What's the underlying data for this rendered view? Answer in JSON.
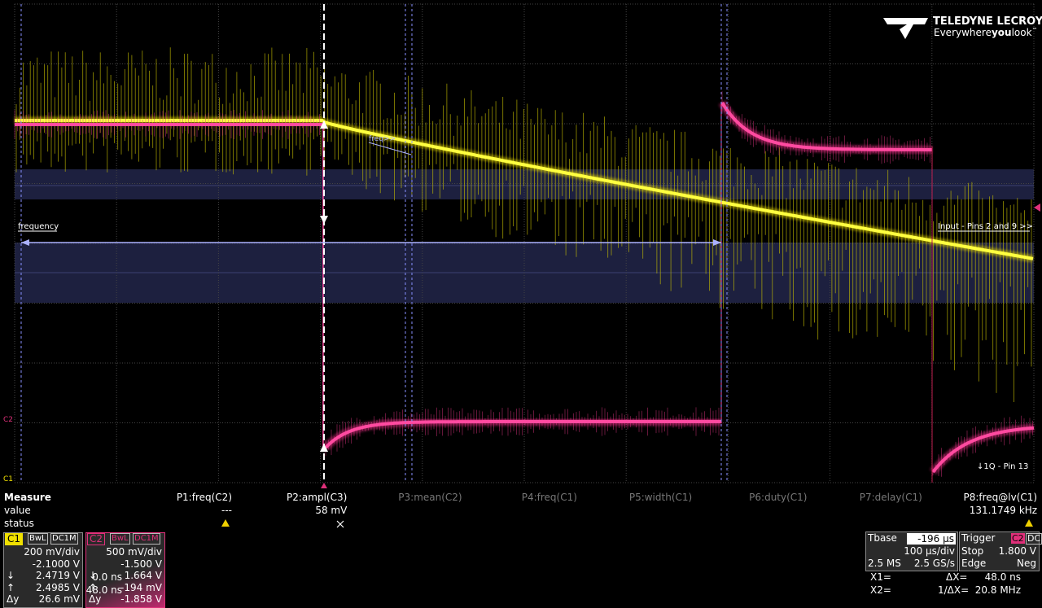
{
  "logo": {
    "brand": "TELEDYNE LECROY",
    "tagline": [
      "Everywhere",
      "you",
      "look"
    ],
    "mark": "™"
  },
  "annotations": {
    "frequency": "frequency",
    "freq": "freq>>",
    "input": "Input - Pins 2 and 9 >>",
    "output": "↓1Q - Pin 13",
    "c2_marker": "C2",
    "c1_marker": "C1"
  },
  "measure": {
    "title": "Measure",
    "row_labels": [
      "value",
      "status"
    ],
    "params": [
      {
        "name": "P1:freq(C2)",
        "value": "---"
      },
      {
        "name": "P2:ampl(C3)",
        "value": "58 mV"
      },
      {
        "name": "P3:mean(C2)"
      },
      {
        "name": "P4:freq(C1)"
      },
      {
        "name": "P5:width(C1)"
      },
      {
        "name": "P6:duty(C1)"
      },
      {
        "name": "P7:delay(C1)"
      },
      {
        "name": "P8:freq@lv(C1)",
        "value": "131.1749 kHz"
      }
    ]
  },
  "channels": [
    {
      "label": "C1",
      "tags": [
        "BwL",
        "DC1M"
      ],
      "rows": [
        {
          "value": "200 mV/div"
        },
        {
          "value": "-2.1000 V"
        },
        {
          "symbol": "↓",
          "value": "2.4719 V"
        },
        {
          "symbol": "↑",
          "value": "2.4985 V"
        },
        {
          "symbol": "Δy",
          "value": "26.6 mV"
        }
      ]
    },
    {
      "label": "C2",
      "tags": [
        "BwL",
        "DC1M"
      ],
      "rows": [
        {
          "value": "500 mV/div"
        },
        {
          "value": "-1.500 V"
        },
        {
          "symbol": "↓",
          "value": "1.664 V"
        },
        {
          "symbol": "↑",
          "value": "-194 mV"
        },
        {
          "symbol": "Δy",
          "value": "-1.858 V"
        }
      ]
    }
  ],
  "timebase": {
    "label": "Tbase",
    "delay": "-196 µs",
    "scale": "100 µs/div",
    "samples": "2.5 MS",
    "rate": "2.5 GS/s"
  },
  "trigger": {
    "label": "Trigger",
    "source": "C2",
    "coupling": "DC",
    "mode": "Stop",
    "level": "1.800 V",
    "type": "Edge",
    "slope": "Neg"
  },
  "cursors": {
    "x1_label": "X1=",
    "x1": "0.0 ns",
    "dx_label": "ΔX=",
    "dx": "48.0 ns",
    "x2_label": "X2=",
    "x2": "48.0 ns",
    "inv_label": "1/ΔX=",
    "inv": "20.8 MHz"
  }
}
